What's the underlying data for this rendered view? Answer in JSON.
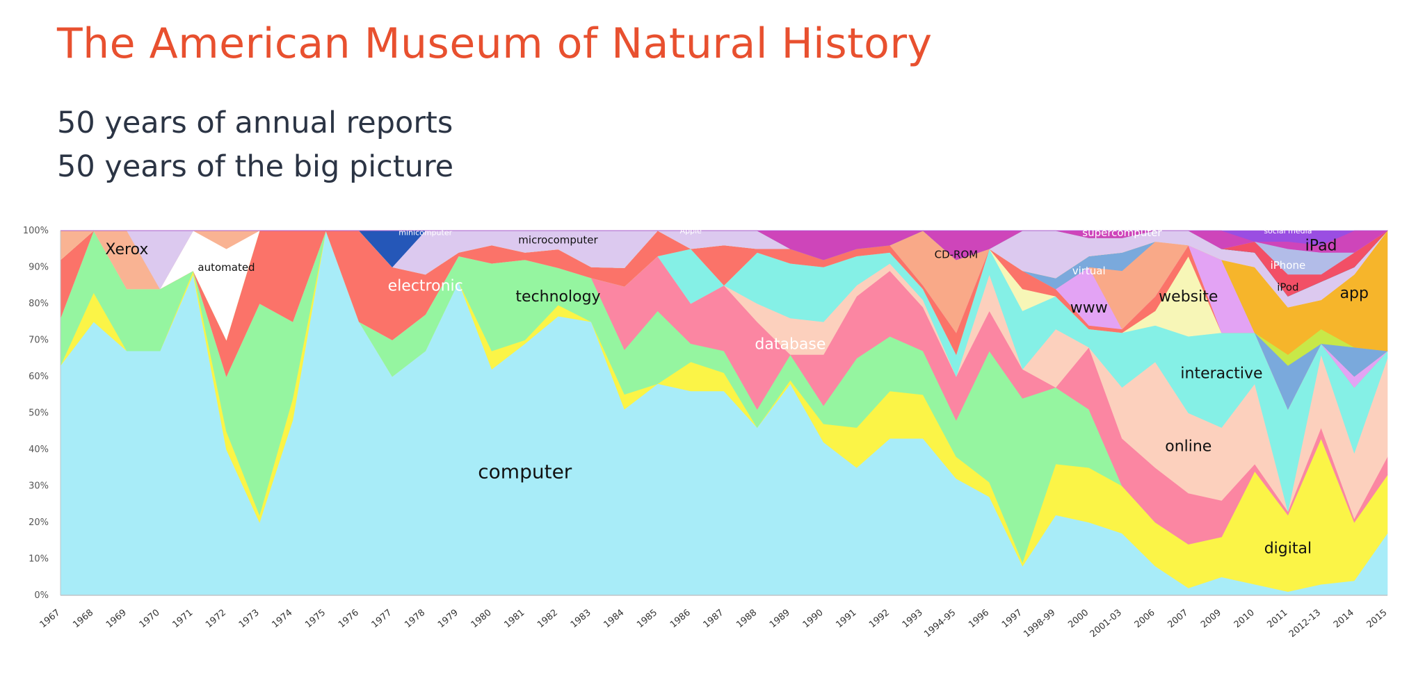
{
  "header": {
    "title": "The American Museum of Natural History",
    "subtitle_lines": [
      "50 years of annual reports",
      "50 years of the big picture"
    ]
  },
  "chart_data": {
    "type": "area",
    "stacked": true,
    "normalized": true,
    "grid": false,
    "legend": "none",
    "ylim": [
      0,
      100
    ],
    "y_tick_labels": [
      "0%",
      "10%",
      "20%",
      "30%",
      "40%",
      "50%",
      "60%",
      "70%",
      "80%",
      "90%",
      "100%"
    ],
    "categories": [
      "1967",
      "1968",
      "1969",
      "1970",
      "1971",
      "1972",
      "1973",
      "1974",
      "1975",
      "1976",
      "1977",
      "1978",
      "1979",
      "1980",
      "1981",
      "1982",
      "1983",
      "1984",
      "1985",
      "1986",
      "1987",
      "1988",
      "1989",
      "1990",
      "1991",
      "1992",
      "1993",
      "1994-95",
      "1996",
      "1997",
      "1998-99",
      "2000",
      "2001-03",
      "2006",
      "2007",
      "2009",
      "2010",
      "2011",
      "2012-13",
      "2014",
      "2015"
    ],
    "series": [
      {
        "name": "computer",
        "color": "#a8ecf8",
        "values": [
          63,
          75,
          67,
          67,
          88,
          40,
          20,
          48,
          100,
          75,
          60,
          67,
          86,
          62,
          69,
          75,
          75,
          50,
          58,
          56,
          56,
          46,
          58,
          42,
          35,
          43,
          43,
          32,
          27,
          8,
          22,
          20,
          17,
          8,
          2,
          5,
          3,
          1,
          3,
          4,
          17
        ]
      },
      {
        "name": "digital",
        "color": "#fbf447",
        "values": [
          0,
          8,
          0,
          0,
          1,
          5,
          2,
          6,
          0,
          0,
          0,
          0,
          0,
          5,
          1,
          3,
          0,
          4,
          0,
          8,
          5,
          0,
          1,
          5,
          11,
          13,
          12,
          6,
          4,
          1,
          14,
          15,
          13,
          12,
          12,
          11,
          31,
          21,
          40,
          16,
          16
        ]
      },
      {
        "name": "technology",
        "color": "#95f5a0",
        "values": [
          13,
          17,
          17,
          17,
          0,
          15,
          58,
          21,
          0,
          0,
          10,
          10,
          7,
          24,
          22,
          10,
          12,
          12,
          20,
          5,
          6,
          5,
          7,
          5,
          19,
          15,
          12,
          10,
          36,
          45,
          21,
          16,
          0,
          0,
          0,
          0,
          0,
          0,
          0,
          0,
          0
        ]
      },
      {
        "name": "database",
        "color": "#fb86a2",
        "values": [
          0,
          0,
          0,
          0,
          0,
          0,
          0,
          0,
          0,
          0,
          0,
          0,
          0,
          0,
          0,
          0,
          0,
          17,
          15,
          11,
          18,
          24,
          0,
          14,
          17,
          18,
          12,
          12,
          11,
          8,
          0,
          17,
          13,
          15,
          14,
          10,
          2,
          1,
          3,
          1,
          5
        ]
      },
      {
        "name": "online",
        "color": "#fcd0bd",
        "values": [
          0,
          0,
          0,
          0,
          0,
          0,
          0,
          0,
          0,
          0,
          0,
          0,
          0,
          0,
          0,
          0,
          0,
          0,
          0,
          0,
          0,
          5,
          10,
          9,
          3,
          2,
          2,
          0,
          10,
          0,
          16,
          0,
          14,
          29,
          22,
          20,
          22,
          0,
          20,
          18,
          27
        ]
      },
      {
        "name": "interactive",
        "color": "#85f0e6",
        "values": [
          0,
          0,
          0,
          0,
          0,
          0,
          0,
          0,
          0,
          0,
          0,
          0,
          0,
          0,
          0,
          0,
          0,
          0,
          0,
          15,
          0,
          14,
          15,
          15,
          8,
          3,
          3,
          6,
          7,
          16,
          9,
          5,
          15,
          10,
          21,
          26,
          14,
          28,
          3,
          18,
          2
        ]
      },
      {
        "name": "website",
        "color": "#f7f6b7",
        "values": [
          0,
          0,
          0,
          0,
          0,
          0,
          0,
          0,
          0,
          0,
          0,
          0,
          0,
          0,
          0,
          0,
          0,
          0,
          0,
          0,
          0,
          0,
          0,
          0,
          0,
          0,
          0,
          0,
          0,
          6,
          0,
          0,
          0,
          4,
          22,
          0,
          0,
          0,
          0,
          0,
          0
        ]
      },
      {
        "name": "electronic",
        "color": "#fb7369",
        "values": [
          16,
          0,
          0,
          0,
          0,
          10,
          20,
          25,
          0,
          25,
          20,
          11,
          1,
          5,
          2,
          5,
          3,
          5,
          7,
          0,
          11,
          1,
          4,
          2,
          2,
          2,
          1,
          6,
          0,
          5,
          2,
          1,
          1,
          4,
          3,
          0,
          0,
          0,
          0,
          0,
          0
        ]
      },
      {
        "name": "www",
        "color": "#e3a3f4",
        "values": [
          0,
          0,
          0,
          0,
          0,
          0,
          0,
          0,
          0,
          0,
          0,
          0,
          0,
          0,
          0,
          0,
          0,
          0,
          0,
          0,
          0,
          0,
          0,
          0,
          0,
          0,
          0,
          0,
          0,
          0,
          0,
          16,
          0,
          0,
          0,
          20,
          0,
          0,
          0,
          3,
          0
        ]
      },
      {
        "name": "CD-ROM",
        "color": "#f9a988",
        "values": [
          0,
          0,
          0,
          0,
          0,
          0,
          0,
          0,
          0,
          0,
          0,
          0,
          0,
          0,
          0,
          0,
          0,
          0,
          0,
          0,
          0,
          0,
          0,
          0,
          0,
          0,
          15,
          20,
          0,
          0,
          0,
          0,
          16,
          15,
          0,
          0,
          0,
          0,
          0,
          0,
          0
        ]
      },
      {
        "name": "virtual",
        "color": "#7aa9dc",
        "values": [
          0,
          0,
          0,
          0,
          0,
          0,
          0,
          0,
          0,
          0,
          0,
          0,
          0,
          0,
          0,
          0,
          0,
          0,
          0,
          0,
          0,
          0,
          0,
          0,
          0,
          0,
          0,
          0,
          0,
          0,
          3,
          3,
          5,
          0,
          0,
          0,
          0,
          12,
          0,
          8,
          0
        ]
      },
      {
        "name": "iPod",
        "color": "#c8e848",
        "values": [
          0,
          0,
          0,
          0,
          0,
          0,
          0,
          0,
          0,
          0,
          0,
          0,
          0,
          0,
          0,
          0,
          0,
          0,
          0,
          0,
          0,
          0,
          0,
          0,
          0,
          0,
          0,
          0,
          0,
          0,
          0,
          0,
          0,
          0,
          0,
          0,
          0,
          3,
          4,
          0,
          0
        ]
      },
      {
        "name": "app",
        "color": "#f6b52b",
        "values": [
          0,
          0,
          0,
          0,
          0,
          0,
          0,
          0,
          0,
          0,
          0,
          0,
          0,
          0,
          0,
          0,
          0,
          0,
          0,
          0,
          0,
          0,
          0,
          0,
          0,
          0,
          0,
          0,
          0,
          0,
          0,
          0,
          0,
          0,
          0,
          0,
          18,
          13,
          8,
          20,
          33
        ]
      },
      {
        "name": "automated",
        "color": "#ffffff",
        "values": [
          0,
          0,
          0,
          0,
          11,
          25,
          0,
          0,
          0,
          0,
          0,
          0,
          0,
          0,
          0,
          0,
          0,
          0,
          0,
          0,
          0,
          0,
          0,
          0,
          0,
          0,
          0,
          0,
          0,
          0,
          0,
          0,
          0,
          0,
          0,
          0,
          0,
          0,
          0,
          0,
          0
        ]
      },
      {
        "name": "Xerox",
        "color": "#f9b393",
        "values": [
          8,
          0,
          16,
          0,
          0,
          5,
          0,
          0,
          0,
          0,
          0,
          0,
          0,
          0,
          0,
          0,
          0,
          0,
          0,
          0,
          0,
          0,
          0,
          0,
          0,
          0,
          0,
          0,
          0,
          0,
          0,
          0,
          0,
          0,
          0,
          0,
          0,
          0,
          0,
          0,
          0
        ]
      },
      {
        "name": "microcomputer",
        "color": "#dcc9ef",
        "values": [
          0,
          0,
          0,
          16,
          0,
          0,
          0,
          0,
          0,
          0,
          0,
          12,
          6,
          4,
          6,
          5,
          10,
          10,
          0,
          5,
          4,
          5,
          0,
          0,
          0,
          0,
          0,
          0,
          0,
          11,
          13,
          5,
          4,
          3,
          4,
          3,
          4,
          3,
          5,
          2,
          0
        ]
      },
      {
        "name": "minicomputer",
        "color": "#2557b8",
        "values": [
          0,
          0,
          0,
          0,
          0,
          0,
          0,
          0,
          0,
          0,
          10,
          0,
          0,
          0,
          0,
          0,
          0,
          0,
          0,
          0,
          0,
          0,
          0,
          0,
          0,
          0,
          0,
          0,
          0,
          0,
          0,
          0,
          0,
          0,
          0,
          0,
          0,
          0,
          0,
          0,
          0
        ]
      },
      {
        "name": "Apple",
        "color": "#33b596",
        "values": [
          0,
          0,
          0,
          0,
          0,
          0,
          0,
          0,
          0,
          0,
          0,
          0,
          0,
          0,
          0,
          0,
          0,
          0,
          0,
          0,
          0,
          0,
          0,
          0,
          0,
          0,
          0,
          0,
          0,
          0,
          0,
          0,
          0,
          0,
          0,
          0,
          0,
          0,
          0,
          0,
          0
        ]
      },
      {
        "name": "iPhone",
        "color": "#f24f66",
        "values": [
          0,
          0,
          0,
          0,
          0,
          0,
          0,
          0,
          0,
          0,
          0,
          0,
          0,
          0,
          0,
          0,
          0,
          0,
          0,
          0,
          0,
          0,
          0,
          0,
          0,
          0,
          0,
          0,
          0,
          0,
          0,
          0,
          0,
          0,
          0,
          0,
          3,
          6,
          2,
          4,
          0
        ]
      },
      {
        "name": "iPad",
        "color": "#b2bce8",
        "values": [
          0,
          0,
          0,
          0,
          0,
          0,
          0,
          0,
          0,
          0,
          0,
          0,
          0,
          0,
          0,
          0,
          0,
          0,
          0,
          0,
          0,
          0,
          0,
          0,
          0,
          0,
          0,
          0,
          0,
          0,
          0,
          0,
          0,
          0,
          0,
          0,
          0,
          7,
          6,
          0,
          0
        ]
      },
      {
        "name": "supercomputer",
        "color": "#ce45ba",
        "values": [
          0,
          0,
          0,
          0,
          0,
          0,
          0,
          0,
          0,
          0,
          0,
          0,
          0,
          0,
          0,
          0,
          0,
          0,
          0,
          0,
          0,
          0,
          5,
          8,
          5,
          4,
          0,
          8,
          5,
          0,
          0,
          2,
          2,
          0,
          0,
          5,
          0,
          2,
          2,
          6,
          0
        ]
      },
      {
        "name": "social media",
        "color": "#9a4ee2",
        "values": [
          0,
          0,
          0,
          0,
          0,
          0,
          0,
          0,
          0,
          0,
          0,
          0,
          0,
          0,
          0,
          0,
          0,
          0,
          0,
          0,
          0,
          0,
          0,
          0,
          0,
          0,
          0,
          0,
          0,
          0,
          0,
          0,
          0,
          0,
          0,
          0,
          3,
          3,
          4,
          0,
          0
        ]
      }
    ],
    "annotations": [
      {
        "text": "Xerox",
        "x": "1969",
        "y": 95,
        "color": "#111111",
        "size": "large"
      },
      {
        "text": "automated",
        "x": "1972",
        "y": 90,
        "color": "#111111",
        "size": "small"
      },
      {
        "text": "minicomputer",
        "x": "1978",
        "y": 99.5,
        "color": "#ffffff",
        "size": "tiny"
      },
      {
        "text": "electronic",
        "x": "1978",
        "y": 85,
        "color": "#ffffff",
        "size": "large"
      },
      {
        "text": "technology",
        "x": "1982",
        "y": 82,
        "color": "#111111",
        "size": "large"
      },
      {
        "text": "microcomputer",
        "x": "1982",
        "y": 97.5,
        "color": "#111111",
        "size": "small"
      },
      {
        "text": "Apple",
        "x": "1986",
        "y": 100,
        "color": "#ffffff",
        "size": "tiny"
      },
      {
        "text": "computer",
        "x": "1981",
        "y": 34,
        "color": "#111111",
        "size": "xlarge"
      },
      {
        "text": "database",
        "x": "1989",
        "y": 69,
        "color": "#ffffff",
        "size": "large"
      },
      {
        "text": "CD-ROM",
        "x": "1994-95",
        "y": 93.5,
        "color": "#111111",
        "size": "small"
      },
      {
        "text": "supercomputer",
        "x": "2001-03",
        "y": 99.5,
        "color": "#ffffff",
        "size": "small"
      },
      {
        "text": "virtual",
        "x": "2000",
        "y": 89,
        "color": "#ffffff",
        "size": "small"
      },
      {
        "text": "www",
        "x": "2000",
        "y": 79,
        "color": "#111111",
        "size": "large"
      },
      {
        "text": "website",
        "x": "2007",
        "y": 82,
        "color": "#111111",
        "size": "large"
      },
      {
        "text": "interactive",
        "x": "2009",
        "y": 61,
        "color": "#111111",
        "size": "large"
      },
      {
        "text": "online",
        "x": "2007",
        "y": 41,
        "color": "#111111",
        "size": "large"
      },
      {
        "text": "digital",
        "x": "2011",
        "y": 13,
        "color": "#111111",
        "size": "large"
      },
      {
        "text": "social media",
        "x": "2011",
        "y": 100,
        "color": "#ffffff",
        "size": "tiny"
      },
      {
        "text": "iPad",
        "x": "2012-13",
        "y": 96,
        "color": "#111111",
        "size": "large"
      },
      {
        "text": "iPhone",
        "x": "2011",
        "y": 90.5,
        "color": "#ffffff",
        "size": "small"
      },
      {
        "text": "iPod",
        "x": "2011",
        "y": 84.5,
        "color": "#111111",
        "size": "small"
      },
      {
        "text": "app",
        "x": "2014",
        "y": 83,
        "color": "#111111",
        "size": "large"
      }
    ]
  }
}
